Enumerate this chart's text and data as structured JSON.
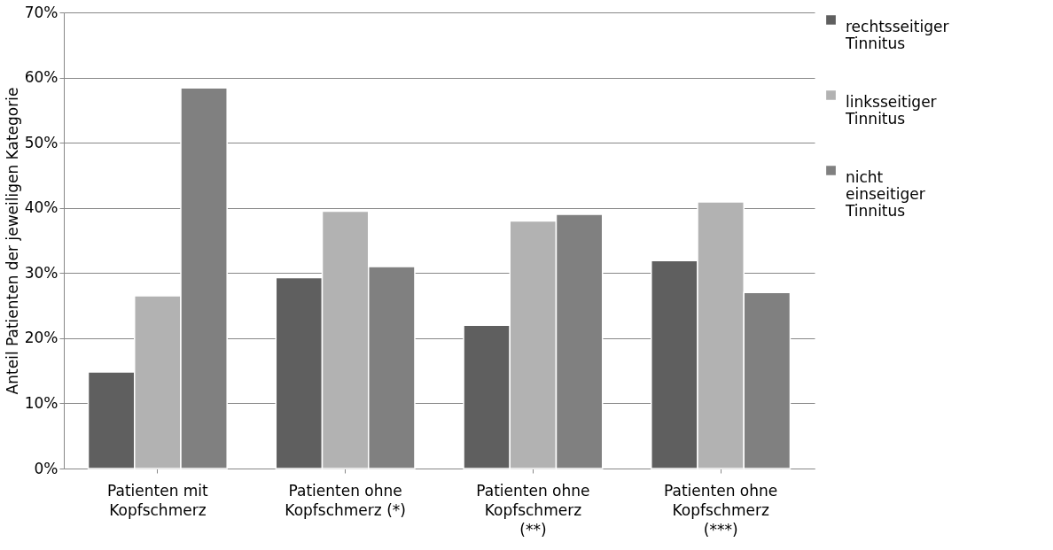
{
  "chart_data": {
    "type": "bar",
    "ylabel": "Anteil Patienten der jeweiligen Kategorie",
    "categories": [
      "Patienten mit Kopfschmerz",
      "Patienten ohne Kopfschmerz (*)",
      "Patienten ohne Kopfschmerz (**)",
      "Patienten ohne Kopfschmerz (***)"
    ],
    "series": [
      {
        "name": "rechtsseitiger Tinnitus",
        "color": "#5f5f5f",
        "values": [
          14.8,
          29.3,
          22.0,
          31.9
        ]
      },
      {
        "name": "linksseitiger Tinnitus",
        "color": "#b2b2b2",
        "values": [
          26.5,
          39.5,
          38.0,
          40.9
        ]
      },
      {
        "name": "nicht einseitiger Tinnitus",
        "color": "#808080",
        "values": [
          58.4,
          31.0,
          39.0,
          27.0
        ]
      }
    ],
    "ylim": [
      0,
      70
    ],
    "yticks": [
      {
        "value": 0,
        "label": "0%"
      },
      {
        "value": 10,
        "label": "10%"
      },
      {
        "value": 20,
        "label": "20%"
      },
      {
        "value": 30,
        "label": "30%"
      },
      {
        "value": 40,
        "label": "40%"
      },
      {
        "value": 50,
        "label": "50%"
      },
      {
        "value": 60,
        "label": "60%"
      },
      {
        "value": 70,
        "label": "70%"
      }
    ],
    "grid": "y",
    "legend": "right"
  }
}
